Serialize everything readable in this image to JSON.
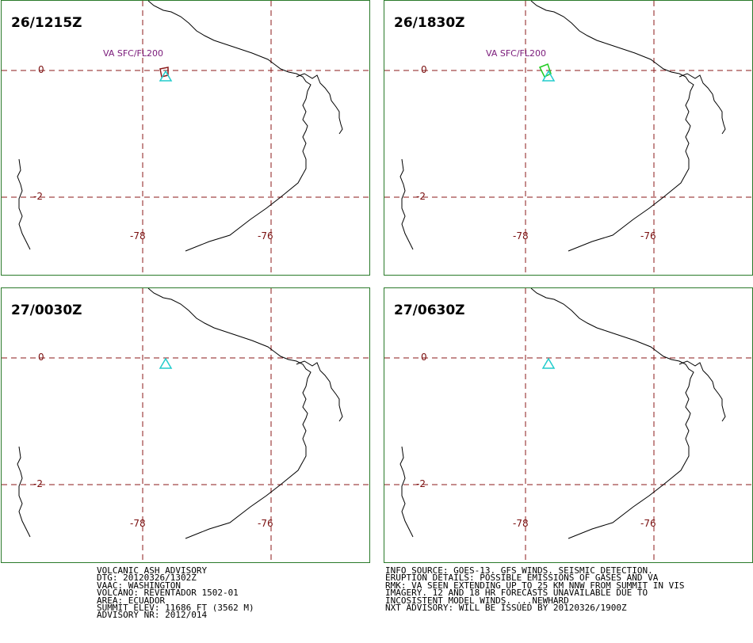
{
  "panels": [
    {
      "time": "26/1215Z",
      "ash_label": "VA SFC/FL200",
      "ash_color": "#8b1a1a"
    },
    {
      "time": "26/1830Z",
      "ash_label": "VA SFC/FL200",
      "ash_color": "#22cc22"
    },
    {
      "time": "27/0030Z",
      "ash_label": "",
      "ash_color": ""
    },
    {
      "time": "27/0630Z",
      "ash_label": "",
      "ash_color": ""
    }
  ],
  "grid": {
    "lat_labels": [
      "0",
      "-2"
    ],
    "lon_labels": [
      "-78",
      "-76"
    ],
    "grid_color": "#8b1a1a",
    "coast_color": "#000000",
    "volcano_color": "#22cccc",
    "frame_color": "#2a7a2a"
  },
  "advisory_left": [
    "VOLCANIC ASH ADVISORY",
    "DTG: 20120326/1302Z",
    "VAAC: WASHINGTON",
    "VOLCANO: REVENTADOR 1502-01",
    "AREA: ECUADOR",
    "SUMMIT ELEV: 11686 FT (3562 M)",
    "ADVISORY NR: 2012/014"
  ],
  "advisory_right": [
    "INFO SOURCE: GOES-13. GFS WINDS. SEISMIC DETECTION.",
    "ERUPTION DETAILS: POSSIBLE EMISSIONS OF GASES AND VA",
    "RMK: VA SEEN EXTENDING UP TO 25 KM NNW FROM SUMMIT IN VIS",
    "IMAGERY. 12 AND 18 HR FORECASTS UNAVAILABLE DUE TO",
    "INCOSISTENT MODEL WINDS. ...NEWHARD",
    "NXT ADVISORY: WILL BE ISSUED BY 20120326/1900Z"
  ]
}
